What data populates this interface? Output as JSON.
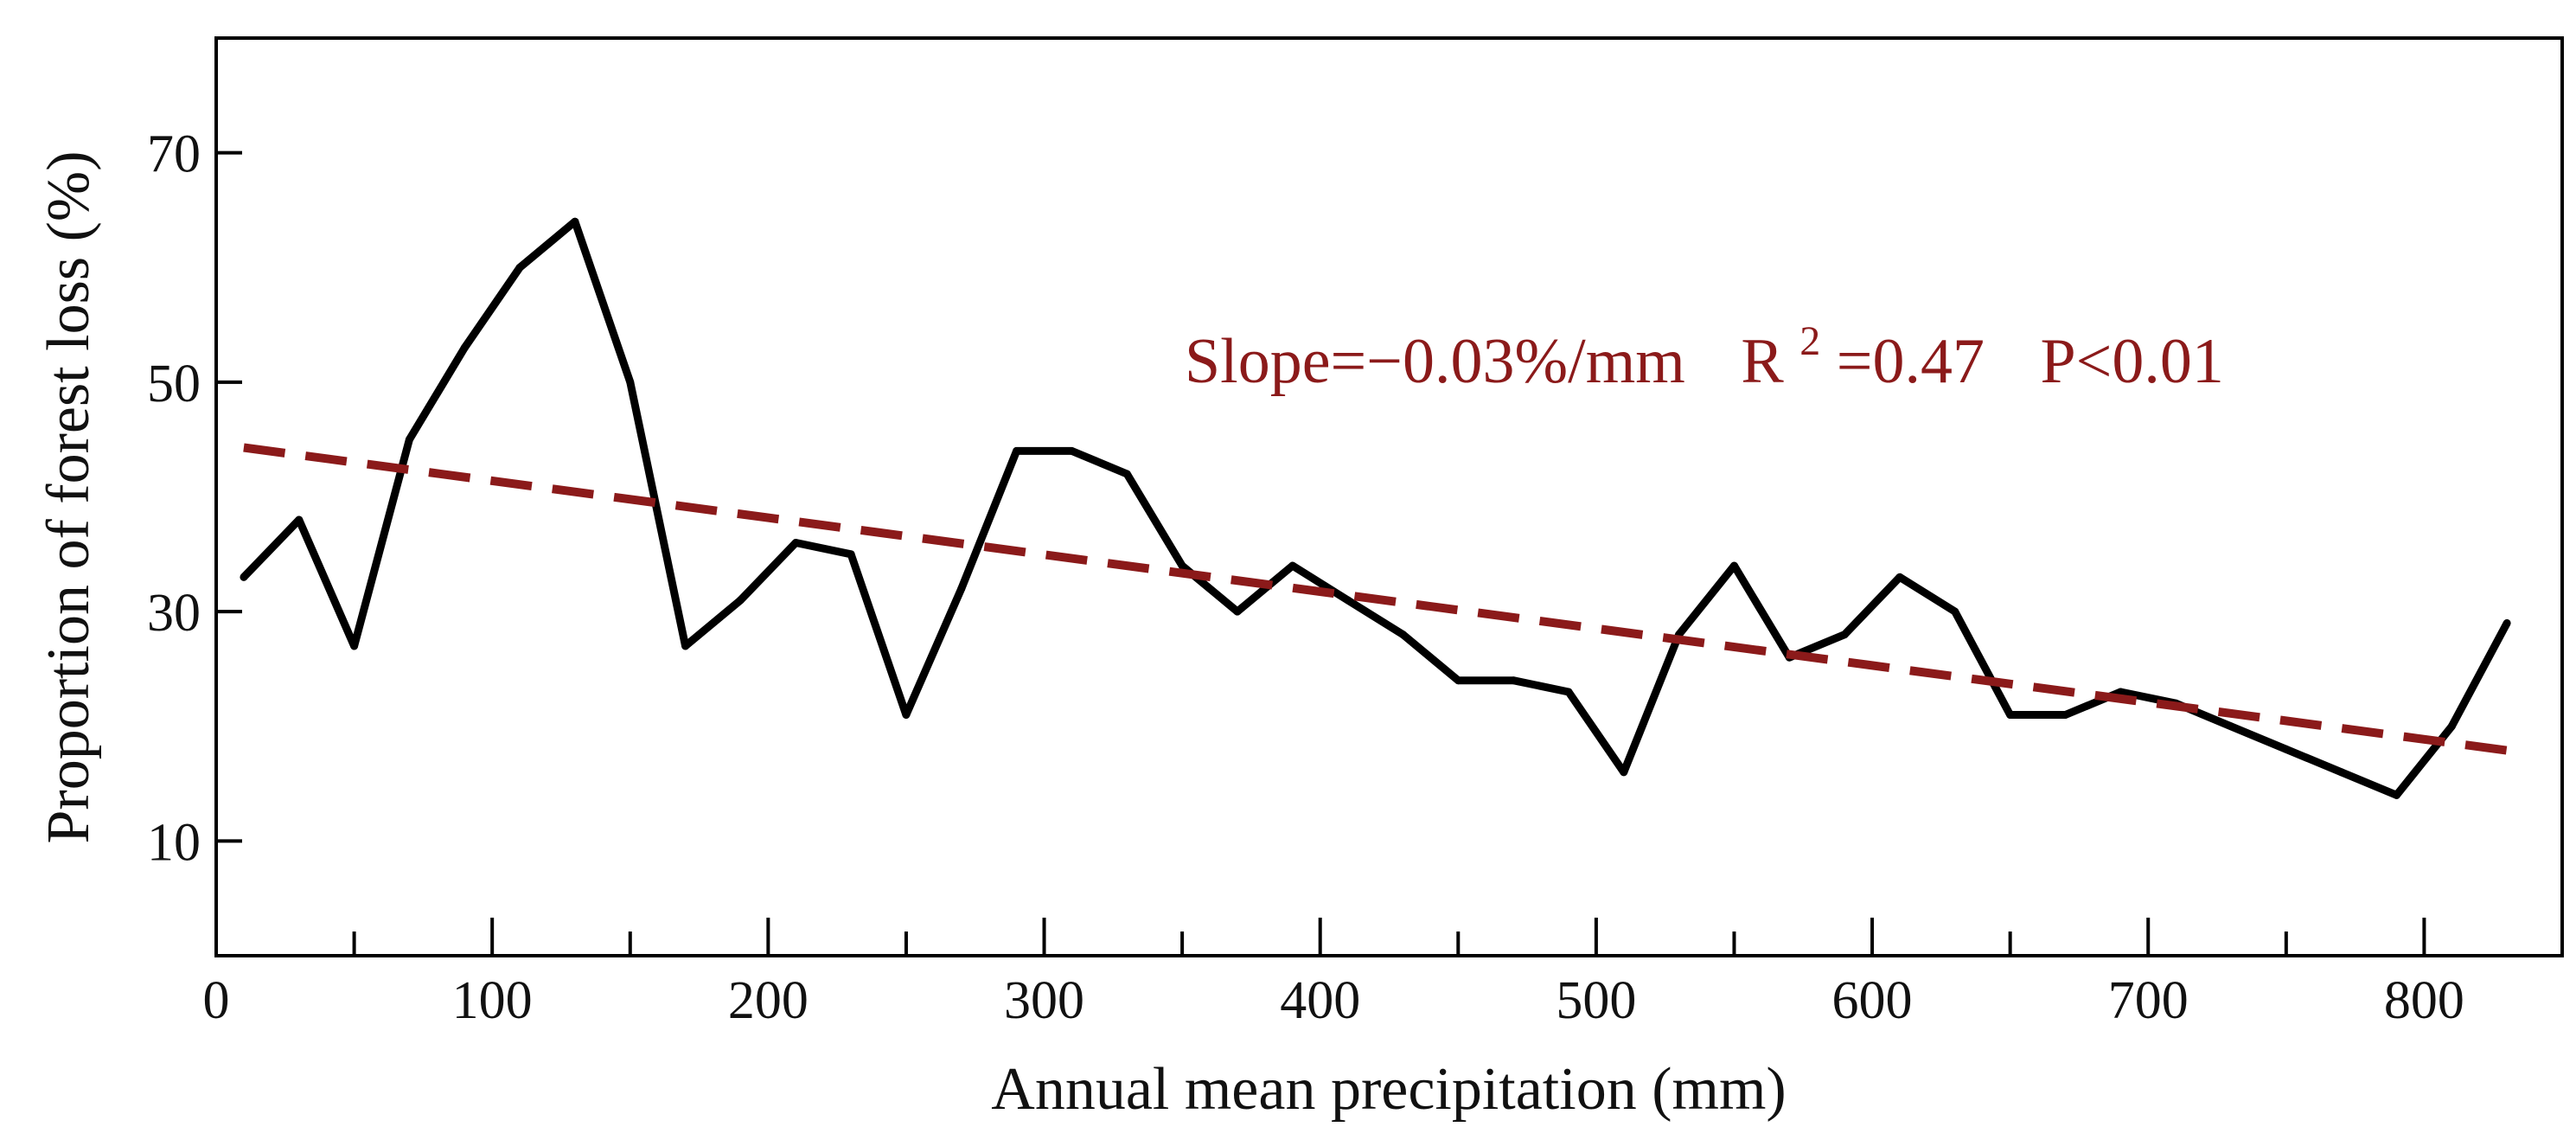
{
  "chart_data": {
    "type": "line",
    "title": "",
    "xlabel": "Annual mean precipitation (mm)",
    "ylabel": "Proportion of forest loss (%)",
    "xlim": [
      0,
      850
    ],
    "ylim": [
      0,
      80
    ],
    "x_ticks": [
      0,
      100,
      200,
      300,
      400,
      500,
      600,
      700,
      800
    ],
    "x_tick_labels": [
      "0",
      "100",
      "200",
      "300",
      "400",
      "500",
      "600",
      "700",
      "800"
    ],
    "x_minor_ticks": [
      50,
      150,
      250,
      350,
      450,
      550,
      650,
      750
    ],
    "y_ticks": [
      10,
      30,
      50,
      70
    ],
    "y_tick_labels": [
      "10",
      "30",
      "50",
      "70"
    ],
    "grid": false,
    "legend": "none",
    "series": [
      {
        "color": "#000000",
        "style": "solid",
        "x": [
          10,
          30,
          50,
          70,
          90,
          110,
          130,
          150,
          170,
          190,
          210,
          230,
          250,
          270,
          290,
          310,
          330,
          350,
          370,
          390,
          410,
          430,
          450,
          470,
          490,
          510,
          530,
          550,
          570,
          590,
          610,
          630,
          650,
          670,
          690,
          710,
          730,
          750,
          770,
          790,
          810,
          830
        ],
        "y": [
          33,
          38,
          27,
          45,
          53,
          60,
          64,
          50,
          27,
          31,
          36,
          35,
          21,
          32,
          44,
          44,
          42,
          34,
          30,
          34,
          31,
          28,
          24,
          24,
          23,
          16,
          28,
          34,
          26,
          28,
          33,
          30,
          21,
          21,
          23,
          22,
          20,
          18,
          16,
          14,
          20,
          29
        ]
      },
      {
        "color": "#8b1a1a",
        "style": "dashed",
        "x": [
          10,
          830
        ],
        "y": [
          44.3,
          17.9
        ]
      }
    ],
    "annotation": {
      "slope_text": "Slope=−0.03%/mm",
      "r_text": "R",
      "r_sup": "2",
      "r_value_text": "=0.47",
      "p_text": "P<0.01",
      "color": "#8b1a1a"
    }
  }
}
